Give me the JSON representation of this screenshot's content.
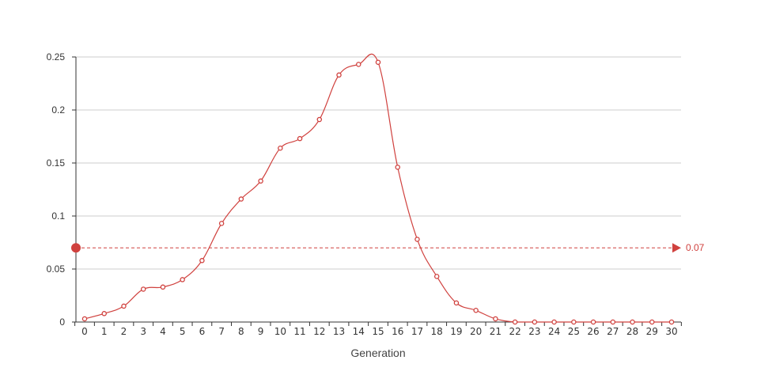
{
  "chart_data": {
    "type": "line",
    "title": "",
    "xlabel": "Generation",
    "ylabel": "",
    "x": [
      0,
      1,
      2,
      3,
      4,
      5,
      6,
      7,
      8,
      9,
      10,
      11,
      12,
      13,
      14,
      15,
      16,
      17,
      18,
      19,
      20,
      21,
      22,
      23,
      24,
      25,
      26,
      27,
      28,
      29,
      30
    ],
    "series": [
      {
        "values": [
          0.003,
          0.008,
          0.015,
          0.031,
          0.033,
          0.04,
          0.058,
          0.093,
          0.116,
          0.133,
          0.164,
          0.173,
          0.191,
          0.233,
          0.243,
          0.245,
          0.146,
          0.078,
          0.043,
          0.018,
          0.011,
          0.003,
          0.0,
          0.0,
          0.0,
          0.0,
          0.0,
          0.0,
          0.0,
          0.0,
          0.0
        ],
        "color": "#d0413e"
      }
    ],
    "ylim": [
      0,
      0.25
    ],
    "y_ticks": [
      0,
      0.05,
      0.1,
      0.15,
      0.2,
      0.25
    ],
    "y_tick_labels": [
      "0",
      "0.05",
      "0.1",
      "0.15",
      "0.2",
      "0.25"
    ],
    "x_tick_labels": [
      "0",
      "1",
      "2",
      "3",
      "4",
      "5",
      "6",
      "7",
      "8",
      "9",
      "10",
      "11",
      "12",
      "13",
      "14",
      "15",
      "16",
      "17",
      "18",
      "19",
      "20",
      "21",
      "22",
      "23",
      "24",
      "25",
      "26",
      "27",
      "28",
      "29",
      "30"
    ],
    "threshold": {
      "value": 0.07,
      "label": "0.07",
      "color": "#d0413e"
    },
    "grid": true,
    "legend": "none"
  }
}
